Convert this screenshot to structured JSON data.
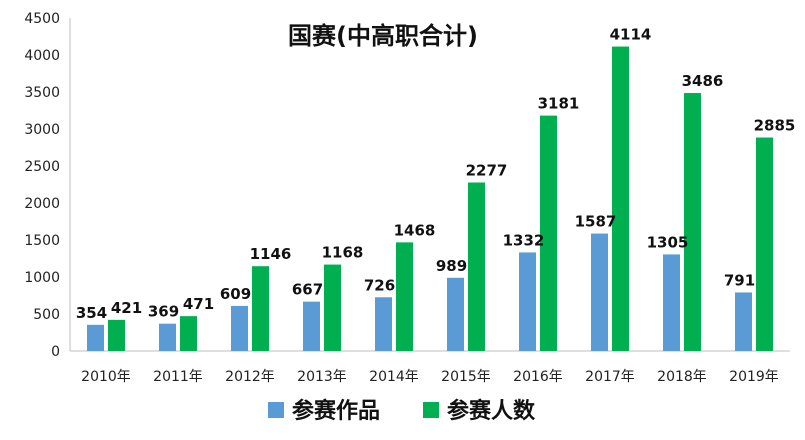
{
  "chart_data": {
    "type": "bar",
    "title": "国赛(中高职合计)",
    "xlabel": "",
    "ylabel": "",
    "categories": [
      "2010年",
      "2011年",
      "2012年",
      "2013年",
      "2014年",
      "2015年",
      "2016年",
      "2017年",
      "2018年",
      "2019年"
    ],
    "series": [
      {
        "name": "参赛作品",
        "color": "#5b9bd5",
        "values": [
          354,
          369,
          609,
          667,
          726,
          989,
          1332,
          1587,
          1305,
          791
        ]
      },
      {
        "name": "参赛人数",
        "color": "#00b050",
        "values": [
          421,
          471,
          1146,
          1168,
          1468,
          2277,
          3181,
          4114,
          3486,
          2885
        ]
      }
    ],
    "ylim": [
      0,
      4500
    ],
    "yticks": [
      "0",
      "500",
      "1000",
      "1500",
      "2000",
      "2500",
      "3000",
      "3500",
      "4000",
      "4500"
    ],
    "grid": false,
    "legend_position": "bottom"
  }
}
